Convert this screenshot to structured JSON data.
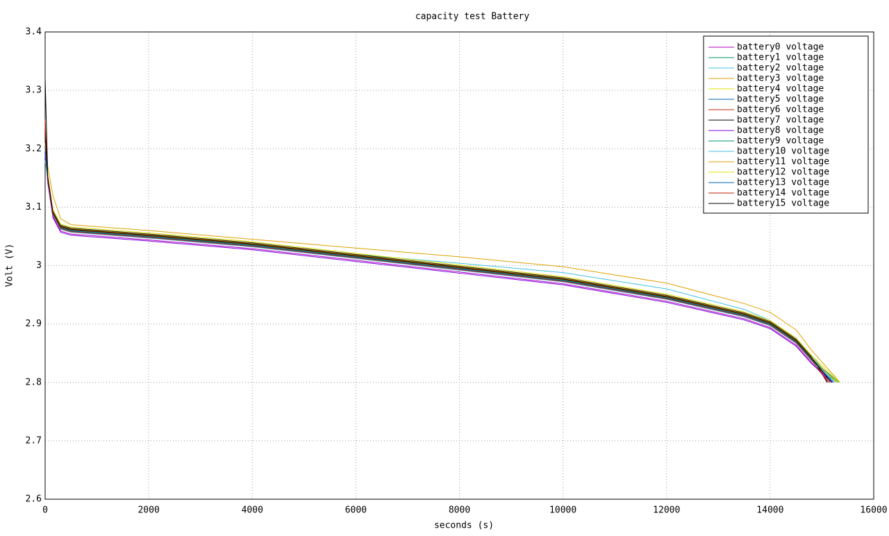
{
  "chart_data": {
    "type": "line",
    "title": "capacity test Battery",
    "xlabel": "seconds (s)",
    "ylabel": "Volt (V)",
    "xlim": [
      0,
      16000
    ],
    "xticks": [
      0,
      2000,
      4000,
      6000,
      8000,
      10000,
      12000,
      14000,
      16000
    ],
    "ylim": [
      2.6,
      3.4
    ],
    "yticks": [
      2.6,
      2.7,
      2.8,
      2.9,
      3,
      3.1,
      3.2,
      3.3,
      3.4
    ],
    "grid": true,
    "legend": "upper right",
    "series": [
      {
        "name": "battery0 voltage",
        "color": "#b000c0",
        "x": [
          0,
          50,
          150,
          300,
          500,
          2000,
          4000,
          6000,
          8000,
          10000,
          12000,
          13500,
          14000,
          14500,
          14800,
          15150
        ],
        "values": [
          3.21,
          3.144,
          3.084,
          3.059,
          3.054,
          3.044,
          3.029,
          3.009,
          2.989,
          2.969,
          2.939,
          2.909,
          2.894,
          2.864,
          2.834,
          2.8
        ]
      },
      {
        "name": "battery1 voltage",
        "color": "#009060",
        "x": [
          0,
          50,
          150,
          300,
          500,
          2000,
          4000,
          6000,
          8000,
          10000,
          12000,
          13500,
          14000,
          14500,
          14800,
          15300
        ],
        "values": [
          3.2,
          3.148,
          3.088,
          3.063,
          3.058,
          3.048,
          3.033,
          3.013,
          2.993,
          2.973,
          2.943,
          2.913,
          2.898,
          2.868,
          2.838,
          2.8
        ]
      },
      {
        "name": "battery2 voltage",
        "color": "#40c0e0",
        "x": [
          0,
          50,
          150,
          300,
          500,
          2000,
          4000,
          6000,
          8000,
          10000,
          12000,
          13500,
          14000,
          14500,
          14800,
          15250
        ],
        "values": [
          3.19,
          3.154,
          3.094,
          3.069,
          3.064,
          3.054,
          3.039,
          3.019,
          3.004,
          2.988,
          2.96,
          2.925,
          2.906,
          2.876,
          2.846,
          2.8
        ]
      },
      {
        "name": "battery3 voltage",
        "color": "#e0a000",
        "x": [
          0,
          50,
          150,
          300,
          500,
          2000,
          4000,
          6000,
          8000,
          10000,
          12000,
          13500,
          14000,
          14500,
          14800,
          15350
        ],
        "values": [
          3.22,
          3.17,
          3.12,
          3.08,
          3.07,
          3.06,
          3.045,
          3.03,
          3.015,
          2.998,
          2.97,
          2.935,
          2.92,
          2.89,
          2.855,
          2.8
        ]
      },
      {
        "name": "battery4 voltage",
        "color": "#e0e000",
        "x": [
          0,
          50,
          150,
          300,
          500,
          2000,
          4000,
          6000,
          8000,
          10000,
          12000,
          13500,
          14000,
          14500,
          14800,
          15300
        ],
        "values": [
          3.2,
          3.152,
          3.092,
          3.067,
          3.062,
          3.052,
          3.037,
          3.017,
          2.997,
          2.977,
          2.947,
          2.917,
          2.902,
          2.872,
          2.842,
          2.8
        ]
      },
      {
        "name": "battery5 voltage",
        "color": "#0060b0",
        "x": [
          0,
          50,
          150,
          300,
          500,
          2000,
          4000,
          6000,
          8000,
          10000,
          12000,
          13500,
          14000,
          14500,
          14800,
          15200
        ],
        "values": [
          3.21,
          3.15,
          3.09,
          3.065,
          3.06,
          3.05,
          3.035,
          3.015,
          2.995,
          2.975,
          2.945,
          2.915,
          2.9,
          2.87,
          2.84,
          2.8
        ]
      },
      {
        "name": "battery6 voltage",
        "color": "#c02000",
        "x": [
          0,
          50,
          150,
          300,
          500,
          2000,
          4000,
          6000,
          8000,
          10000,
          12000,
          13500,
          14000,
          14500,
          14800,
          15150
        ],
        "values": [
          3.25,
          3.151,
          3.091,
          3.066,
          3.061,
          3.051,
          3.036,
          3.016,
          2.996,
          2.976,
          2.946,
          2.916,
          2.901,
          2.871,
          2.841,
          2.8
        ]
      },
      {
        "name": "battery7 voltage",
        "color": "#000000",
        "x": [
          0,
          50,
          150,
          300,
          500,
          2000,
          4000,
          6000,
          8000,
          10000,
          12000,
          13500,
          14000,
          14500,
          14800,
          15100
        ],
        "values": [
          3.32,
          3.154,
          3.094,
          3.069,
          3.064,
          3.054,
          3.039,
          3.019,
          2.999,
          2.979,
          2.949,
          2.919,
          2.904,
          2.874,
          2.844,
          2.8
        ]
      },
      {
        "name": "battery8 voltage",
        "color": "#8000e0",
        "x": [
          0,
          50,
          150,
          300,
          500,
          2000,
          4000,
          6000,
          8000,
          10000,
          12000,
          13500,
          14000,
          14500,
          14800,
          15200
        ],
        "values": [
          3.19,
          3.142,
          3.082,
          3.057,
          3.052,
          3.042,
          3.027,
          3.007,
          2.987,
          2.967,
          2.937,
          2.907,
          2.892,
          2.862,
          2.832,
          2.8
        ]
      },
      {
        "name": "battery9 voltage",
        "color": "#009060",
        "x": [
          0,
          50,
          150,
          300,
          500,
          2000,
          4000,
          6000,
          8000,
          10000,
          12000,
          13500,
          14000,
          14500,
          14800,
          15330
        ],
        "values": [
          3.2,
          3.15,
          3.09,
          3.065,
          3.06,
          3.05,
          3.035,
          3.015,
          2.995,
          2.975,
          2.945,
          2.915,
          2.9,
          2.87,
          2.84,
          2.8
        ]
      },
      {
        "name": "battery10 voltage",
        "color": "#40c0e0",
        "x": [
          0,
          50,
          150,
          300,
          500,
          2000,
          4000,
          6000,
          8000,
          10000,
          12000,
          13500,
          14000,
          14500,
          14800,
          15250
        ],
        "values": [
          3.18,
          3.147,
          3.087,
          3.062,
          3.057,
          3.047,
          3.032,
          3.012,
          2.992,
          2.972,
          2.942,
          2.912,
          2.897,
          2.867,
          2.837,
          2.8
        ]
      },
      {
        "name": "battery11 voltage",
        "color": "#e0a000",
        "x": [
          0,
          50,
          150,
          300,
          500,
          2000,
          4000,
          6000,
          8000,
          10000,
          12000,
          13500,
          14000,
          14500,
          14800,
          15280
        ],
        "values": [
          3.2,
          3.153,
          3.093,
          3.068,
          3.063,
          3.053,
          3.038,
          3.018,
          2.998,
          2.978,
          2.948,
          2.918,
          2.903,
          2.873,
          2.843,
          2.8
        ]
      },
      {
        "name": "battery12 voltage",
        "color": "#e0e000",
        "x": [
          0,
          50,
          150,
          300,
          500,
          2000,
          4000,
          6000,
          8000,
          10000,
          12000,
          13500,
          14000,
          14500,
          14800,
          15350
        ],
        "values": [
          3.21,
          3.156,
          3.096,
          3.071,
          3.066,
          3.056,
          3.041,
          3.021,
          3.001,
          2.981,
          2.951,
          2.921,
          2.906,
          2.876,
          2.846,
          2.8
        ]
      },
      {
        "name": "battery13 voltage",
        "color": "#0060b0",
        "x": [
          0,
          50,
          150,
          300,
          500,
          2000,
          4000,
          6000,
          8000,
          10000,
          12000,
          13500,
          14000,
          14500,
          14800,
          15220
        ],
        "values": [
          3.2,
          3.149,
          3.089,
          3.064,
          3.059,
          3.049,
          3.034,
          3.014,
          2.994,
          2.974,
          2.944,
          2.914,
          2.899,
          2.869,
          2.839,
          2.8
        ]
      },
      {
        "name": "battery14 voltage",
        "color": "#c02000",
        "x": [
          0,
          50,
          150,
          300,
          500,
          2000,
          4000,
          6000,
          8000,
          10000,
          12000,
          13500,
          14000,
          14500,
          14800,
          15120
        ],
        "values": [
          3.24,
          3.148,
          3.088,
          3.063,
          3.058,
          3.048,
          3.033,
          3.013,
          2.993,
          2.973,
          2.943,
          2.913,
          2.898,
          2.868,
          2.838,
          2.8
        ]
      },
      {
        "name": "battery15 voltage",
        "color": "#000000",
        "x": [
          0,
          50,
          150,
          300,
          500,
          2000,
          4000,
          6000,
          8000,
          10000,
          12000,
          13500,
          14000,
          14500,
          14800,
          15180
        ],
        "values": [
          3.22,
          3.152,
          3.092,
          3.067,
          3.062,
          3.052,
          3.037,
          3.017,
          2.997,
          2.977,
          2.947,
          2.917,
          2.902,
          2.872,
          2.842,
          2.8
        ]
      }
    ]
  }
}
